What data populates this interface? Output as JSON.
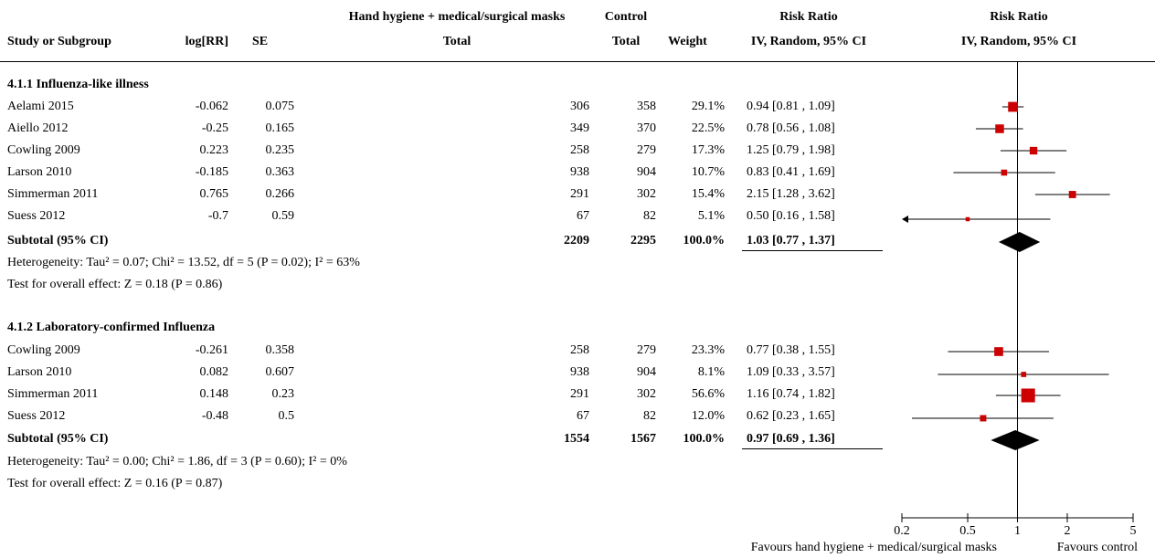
{
  "headers": {
    "study": "Study or Subgroup",
    "logrr": "log[RR]",
    "se": "SE",
    "exp_group": "Hand hygiene + medical/surgical masks",
    "exp_total": "Total",
    "ctrl_group": "Control",
    "ctrl_total": "Total",
    "weight": "Weight",
    "rr_title": "Risk Ratio",
    "rr_method": "IV, Random, 95% CI",
    "plot_title": "Risk Ratio",
    "plot_method": "IV, Random, 95% CI"
  },
  "subgroups": [
    {
      "title": "4.1.1 Influenza-like illness",
      "studies": [
        {
          "name": "Aelami 2015",
          "logrr": "-0.062",
          "se": "0.075",
          "exp": "306",
          "ctrl": "358",
          "weight": "29.1%",
          "ci": "0.94 [0.81 , 1.09]"
        },
        {
          "name": "Aiello 2012",
          "logrr": "-0.25",
          "se": "0.165",
          "exp": "349",
          "ctrl": "370",
          "weight": "22.5%",
          "ci": "0.78 [0.56 , 1.08]"
        },
        {
          "name": "Cowling 2009",
          "logrr": "0.223",
          "se": "0.235",
          "exp": "258",
          "ctrl": "279",
          "weight": "17.3%",
          "ci": "1.25 [0.79 , 1.98]"
        },
        {
          "name": "Larson 2010",
          "logrr": "-0.185",
          "se": "0.363",
          "exp": "938",
          "ctrl": "904",
          "weight": "10.7%",
          "ci": "0.83 [0.41 , 1.69]"
        },
        {
          "name": "Simmerman 2011",
          "logrr": "0.765",
          "se": "0.266",
          "exp": "291",
          "ctrl": "302",
          "weight": "15.4%",
          "ci": "2.15 [1.28 , 3.62]"
        },
        {
          "name": "Suess 2012",
          "logrr": "-0.7",
          "se": "0.59",
          "exp": "67",
          "ctrl": "82",
          "weight": "5.1%",
          "ci": "0.50 [0.16 , 1.58]"
        }
      ],
      "subtotal": {
        "label": "Subtotal (95% CI)",
        "exp": "2209",
        "ctrl": "2295",
        "weight": "100.0%",
        "ci": "1.03 [0.77 , 1.37]"
      },
      "heterogeneity": "Heterogeneity: Tau² = 0.07; Chi² = 13.52, df = 5 (P = 0.02); I² = 63%",
      "overall": "Test for overall effect: Z = 0.18 (P = 0.86)"
    },
    {
      "title": "4.1.2 Laboratory-confirmed Influenza",
      "studies": [
        {
          "name": "Cowling 2009",
          "logrr": "-0.261",
          "se": "0.358",
          "exp": "258",
          "ctrl": "279",
          "weight": "23.3%",
          "ci": "0.77 [0.38 , 1.55]"
        },
        {
          "name": "Larson 2010",
          "logrr": "0.082",
          "se": "0.607",
          "exp": "938",
          "ctrl": "904",
          "weight": "8.1%",
          "ci": "1.09 [0.33 , 3.57]"
        },
        {
          "name": "Simmerman 2011",
          "logrr": "0.148",
          "se": "0.23",
          "exp": "291",
          "ctrl": "302",
          "weight": "56.6%",
          "ci": "1.16 [0.74 , 1.82]"
        },
        {
          "name": "Suess 2012",
          "logrr": "-0.48",
          "se": "0.5",
          "exp": "67",
          "ctrl": "82",
          "weight": "12.0%",
          "ci": "0.62 [0.23 , 1.65]"
        }
      ],
      "subtotal": {
        "label": "Subtotal (95% CI)",
        "exp": "1554",
        "ctrl": "1567",
        "weight": "100.0%",
        "ci": "0.97 [0.69 , 1.36]"
      },
      "heterogeneity": "Heterogeneity: Tau² = 0.00; Chi² = 1.86, df = 3 (P = 0.60); I² = 0%",
      "overall": "Test for overall effect: Z = 0.16 (P = 0.87)"
    }
  ],
  "chart_data": {
    "type": "forest",
    "scale": "log",
    "xlim": [
      0.2,
      5
    ],
    "ticks": [
      {
        "value": 0.2,
        "label": "0.2"
      },
      {
        "value": 0.5,
        "label": "0.5"
      },
      {
        "value": 1,
        "label": "1"
      },
      {
        "value": 2,
        "label": "2"
      },
      {
        "value": 5,
        "label": "5"
      }
    ],
    "xlabel_left": "Favours hand hygiene + medical/surgical masks",
    "xlabel_right": "Favours control",
    "square_color": "#cc0000",
    "diamond_color": "#000000",
    "studies": [
      {
        "subgroup": 0,
        "rr": 0.94,
        "lo": 0.81,
        "hi": 1.09,
        "weight": 29.1
      },
      {
        "subgroup": 0,
        "rr": 0.78,
        "lo": 0.56,
        "hi": 1.08,
        "weight": 22.5
      },
      {
        "subgroup": 0,
        "rr": 1.25,
        "lo": 0.79,
        "hi": 1.98,
        "weight": 17.3
      },
      {
        "subgroup": 0,
        "rr": 0.83,
        "lo": 0.41,
        "hi": 1.69,
        "weight": 10.7
      },
      {
        "subgroup": 0,
        "rr": 2.15,
        "lo": 1.28,
        "hi": 3.62,
        "weight": 15.4
      },
      {
        "subgroup": 0,
        "rr": 0.5,
        "lo": 0.16,
        "hi": 1.58,
        "weight": 5.1
      },
      {
        "subgroup": 1,
        "rr": 0.77,
        "lo": 0.38,
        "hi": 1.55,
        "weight": 23.3
      },
      {
        "subgroup": 1,
        "rr": 1.09,
        "lo": 0.33,
        "hi": 3.57,
        "weight": 8.1
      },
      {
        "subgroup": 1,
        "rr": 1.16,
        "lo": 0.74,
        "hi": 1.82,
        "weight": 56.6
      },
      {
        "subgroup": 1,
        "rr": 0.62,
        "lo": 0.23,
        "hi": 1.65,
        "weight": 12.0
      }
    ],
    "subtotals": [
      {
        "subgroup": 0,
        "rr": 1.03,
        "lo": 0.77,
        "hi": 1.37
      },
      {
        "subgroup": 1,
        "rr": 0.97,
        "lo": 0.69,
        "hi": 1.36
      }
    ]
  }
}
